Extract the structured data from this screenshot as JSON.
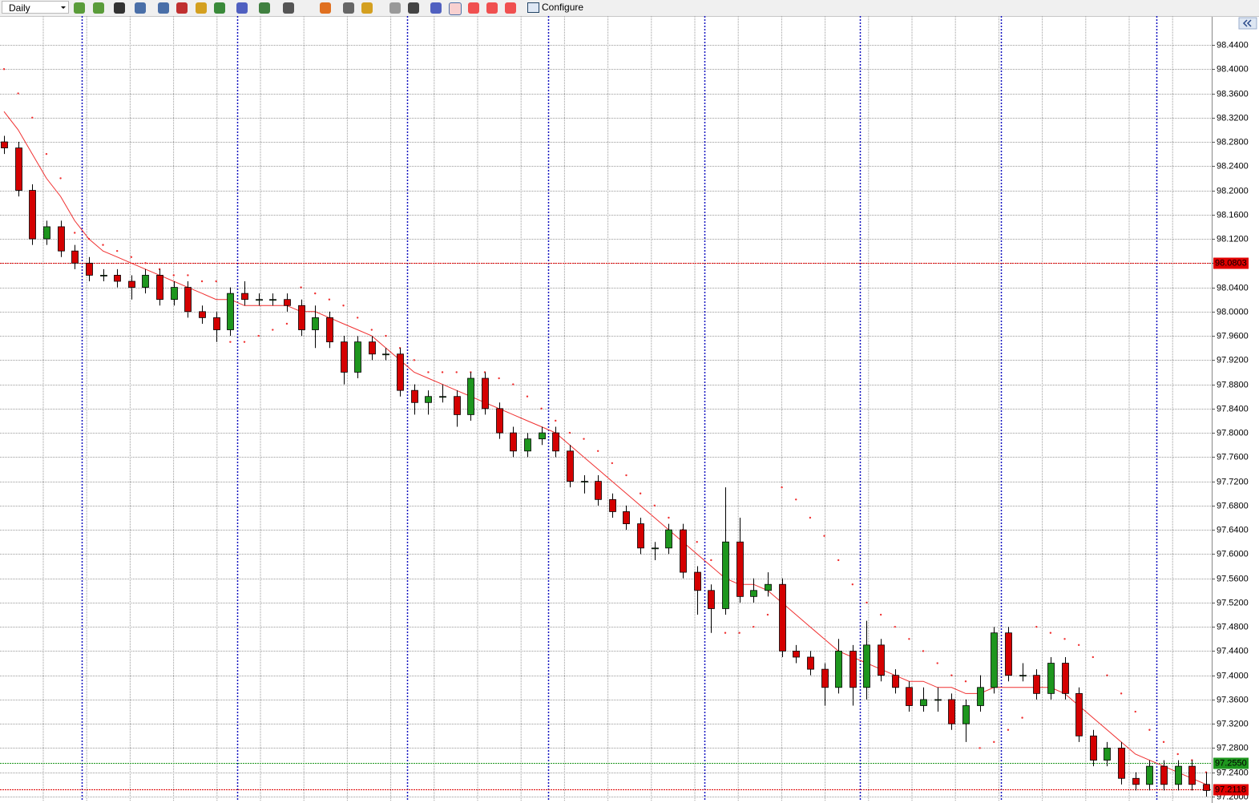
{
  "toolbar": {
    "timeframe": "Daily",
    "configure": "Configure"
  },
  "chart_data": {
    "type": "candlestick",
    "ylim": [
      97.192,
      98.4876
    ],
    "yticks": [
      {
        "value": 98.44,
        "label": "98.4400"
      },
      {
        "value": 98.4,
        "label": "98.4000"
      },
      {
        "value": 98.36,
        "label": "98.3600"
      },
      {
        "value": 98.32,
        "label": "98.3200"
      },
      {
        "value": 98.28,
        "label": "98.2800"
      },
      {
        "value": 98.24,
        "label": "98.2400"
      },
      {
        "value": 98.2,
        "label": "98.2000"
      },
      {
        "value": 98.16,
        "label": "98.1600"
      },
      {
        "value": 98.12,
        "label": "98.1200"
      },
      {
        "value": 98.08,
        "label": "98.0800"
      },
      {
        "value": 98.04,
        "label": "98.0400"
      },
      {
        "value": 98.0,
        "label": "98.0000"
      },
      {
        "value": 97.96,
        "label": "97.9600"
      },
      {
        "value": 97.92,
        "label": "97.9200"
      },
      {
        "value": 97.88,
        "label": "97.8800"
      },
      {
        "value": 97.84,
        "label": "97.8400"
      },
      {
        "value": 97.8,
        "label": "97.8000"
      },
      {
        "value": 97.76,
        "label": "97.7600"
      },
      {
        "value": 97.72,
        "label": "97.7200"
      },
      {
        "value": 97.68,
        "label": "97.6800"
      },
      {
        "value": 97.64,
        "label": "97.6400"
      },
      {
        "value": 97.6,
        "label": "97.6000"
      },
      {
        "value": 97.56,
        "label": "97.5600"
      },
      {
        "value": 97.52,
        "label": "97.5200"
      },
      {
        "value": 97.48,
        "label": "97.4800"
      },
      {
        "value": 97.44,
        "label": "97.4400"
      },
      {
        "value": 97.4,
        "label": "97.4000"
      },
      {
        "value": 97.36,
        "label": "97.3600"
      },
      {
        "value": 97.32,
        "label": "97.3200"
      },
      {
        "value": 97.28,
        "label": "97.2800"
      },
      {
        "value": 97.24,
        "label": "97.2400"
      },
      {
        "value": 97.2,
        "label": "97.2000"
      }
    ],
    "grid": true,
    "up_color": "#1e961e",
    "down_color": "#d40000",
    "open": [
      98.28,
      98.27,
      98.2,
      98.12,
      98.14,
      98.1,
      98.08,
      98.06,
      98.06,
      98.05,
      98.04,
      98.06,
      98.02,
      98.04,
      98.0,
      97.99,
      97.97,
      98.03,
      98.02,
      98.02,
      98.02,
      98.01,
      97.97,
      97.99,
      97.95,
      97.9,
      97.95,
      97.93,
      97.93,
      97.87,
      97.85,
      97.86,
      97.86,
      97.83,
      97.89,
      97.84,
      97.8,
      97.77,
      97.79,
      97.8,
      97.77,
      97.72,
      97.72,
      97.69,
      97.67,
      97.65,
      97.61,
      97.61,
      97.64,
      97.57,
      97.54,
      97.51,
      97.62,
      97.53,
      97.54,
      97.55,
      97.44,
      97.43,
      97.41,
      97.38,
      97.44,
      97.38,
      97.45,
      97.4,
      97.38,
      97.35,
      97.36,
      97.36,
      97.32,
      97.35,
      97.38,
      97.47,
      97.4,
      97.4,
      97.37,
      97.42,
      97.37,
      97.3,
      97.26,
      97.28,
      97.23,
      97.22,
      97.25,
      97.22,
      97.25,
      97.22
    ],
    "high": [
      98.29,
      98.28,
      98.21,
      98.15,
      98.15,
      98.11,
      98.09,
      98.07,
      98.07,
      98.06,
      98.07,
      98.07,
      98.05,
      98.05,
      98.01,
      98.0,
      98.04,
      98.05,
      98.03,
      98.03,
      98.03,
      98.02,
      98.01,
      98.0,
      97.96,
      97.96,
      97.96,
      97.94,
      97.94,
      97.88,
      97.87,
      97.88,
      97.87,
      97.9,
      97.9,
      97.85,
      97.81,
      97.8,
      97.81,
      97.81,
      97.78,
      97.73,
      97.73,
      97.7,
      97.68,
      97.66,
      97.62,
      97.65,
      97.65,
      97.58,
      97.55,
      97.71,
      97.66,
      97.56,
      97.57,
      97.56,
      97.45,
      97.44,
      97.42,
      97.46,
      97.45,
      97.49,
      97.46,
      97.41,
      97.39,
      97.38,
      97.38,
      97.37,
      97.36,
      97.4,
      97.48,
      97.48,
      97.42,
      97.41,
      97.43,
      97.43,
      97.38,
      97.31,
      97.29,
      97.29,
      97.24,
      97.26,
      97.26,
      97.26,
      97.26,
      97.24
    ],
    "low": [
      98.26,
      98.19,
      98.11,
      98.11,
      98.09,
      98.07,
      98.05,
      98.05,
      98.04,
      98.02,
      98.03,
      98.01,
      98.01,
      97.99,
      97.98,
      97.95,
      97.96,
      98.01,
      98.01,
      98.01,
      98.0,
      97.96,
      97.94,
      97.94,
      97.88,
      97.89,
      97.92,
      97.92,
      97.86,
      97.83,
      97.83,
      97.85,
      97.81,
      97.82,
      97.83,
      97.79,
      97.76,
      97.76,
      97.78,
      97.76,
      97.71,
      97.7,
      97.68,
      97.66,
      97.64,
      97.6,
      97.59,
      97.6,
      97.56,
      97.5,
      97.47,
      97.5,
      97.52,
      97.52,
      97.53,
      97.43,
      97.42,
      97.4,
      97.35,
      97.37,
      97.35,
      97.36,
      97.39,
      97.37,
      97.34,
      97.34,
      97.34,
      97.31,
      97.29,
      97.34,
      97.37,
      97.39,
      97.39,
      97.36,
      97.36,
      97.36,
      97.29,
      97.25,
      97.25,
      97.22,
      97.21,
      97.21,
      97.21,
      97.21,
      97.21,
      97.2
    ],
    "close": [
      98.27,
      98.2,
      98.12,
      98.14,
      98.1,
      98.08,
      98.06,
      98.06,
      98.05,
      98.04,
      98.06,
      98.02,
      98.04,
      98.0,
      97.99,
      97.97,
      98.03,
      98.02,
      98.02,
      98.02,
      98.01,
      97.97,
      97.99,
      97.95,
      97.9,
      97.95,
      97.93,
      97.93,
      97.87,
      97.85,
      97.86,
      97.86,
      97.83,
      97.89,
      97.84,
      97.8,
      97.77,
      97.79,
      97.8,
      97.77,
      97.72,
      97.72,
      97.69,
      97.67,
      97.65,
      97.61,
      97.61,
      97.64,
      97.57,
      97.54,
      97.51,
      97.62,
      97.53,
      97.54,
      97.55,
      97.44,
      97.43,
      97.41,
      97.38,
      97.44,
      97.38,
      97.45,
      97.4,
      97.38,
      97.35,
      97.36,
      97.36,
      97.32,
      97.35,
      97.38,
      97.47,
      97.4,
      97.4,
      97.37,
      97.42,
      97.37,
      97.3,
      97.26,
      97.28,
      97.23,
      97.22,
      97.25,
      97.22,
      97.25,
      97.22,
      97.21
    ],
    "ma": {
      "color": "#f03030",
      "values": [
        98.33,
        98.3,
        98.26,
        98.22,
        98.19,
        98.15,
        98.12,
        98.1,
        98.09,
        98.08,
        98.07,
        98.06,
        98.05,
        98.04,
        98.03,
        98.02,
        98.02,
        98.01,
        98.01,
        98.01,
        98.01,
        98.0,
        98.0,
        97.99,
        97.98,
        97.97,
        97.96,
        97.94,
        97.92,
        97.9,
        97.89,
        97.88,
        97.87,
        97.86,
        97.85,
        97.84,
        97.83,
        97.82,
        97.81,
        97.8,
        97.78,
        97.76,
        97.74,
        97.72,
        97.7,
        97.68,
        97.66,
        97.64,
        97.62,
        97.6,
        97.58,
        97.56,
        97.55,
        97.55,
        97.54,
        97.52,
        97.5,
        97.48,
        97.46,
        97.44,
        97.43,
        97.42,
        97.41,
        97.4,
        97.39,
        97.39,
        97.38,
        97.38,
        97.37,
        97.37,
        97.38,
        97.38,
        97.38,
        97.38,
        97.38,
        97.37,
        97.35,
        97.33,
        97.31,
        97.29,
        97.27,
        97.26,
        97.25,
        97.24,
        97.23,
        97.22
      ]
    },
    "sar": {
      "color": "#f03030",
      "values": [
        98.4,
        98.36,
        98.32,
        98.26,
        98.22,
        98.13,
        98.12,
        98.11,
        98.1,
        98.09,
        98.08,
        98.07,
        98.06,
        98.06,
        98.05,
        98.05,
        97.95,
        97.95,
        97.96,
        97.97,
        97.98,
        98.04,
        98.03,
        98.02,
        98.01,
        97.99,
        97.97,
        97.96,
        97.94,
        97.92,
        97.9,
        97.9,
        97.9,
        97.9,
        97.9,
        97.89,
        97.88,
        97.86,
        97.84,
        97.82,
        97.8,
        97.79,
        97.77,
        97.75,
        97.73,
        97.7,
        97.68,
        97.66,
        97.64,
        97.62,
        97.59,
        97.47,
        97.47,
        97.48,
        97.5,
        97.71,
        97.69,
        97.66,
        97.63,
        97.59,
        97.55,
        97.52,
        97.5,
        97.48,
        97.46,
        97.44,
        97.42,
        97.4,
        97.39,
        97.28,
        97.29,
        97.31,
        97.33,
        97.48,
        97.47,
        97.46,
        97.45,
        97.43,
        97.4,
        97.37,
        97.34,
        97.31,
        97.29,
        97.27,
        97.26,
        97.24
      ]
    },
    "separators_after": [
      5,
      16,
      28,
      38,
      49,
      60,
      70,
      81
    ],
    "levels": [
      {
        "value": 98.0803,
        "label": "98.0803",
        "color": "#e00000"
      },
      {
        "value": 97.255,
        "label": "97.2550",
        "color": "#1e961e"
      },
      {
        "value": 97.2118,
        "label": "97.2118",
        "color": "#e00000"
      }
    ]
  }
}
